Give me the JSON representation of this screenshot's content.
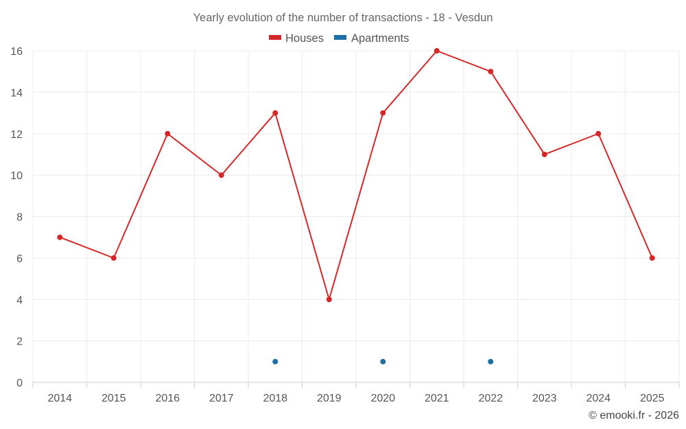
{
  "chart_data": {
    "type": "line",
    "title": "Yearly evolution of the number of transactions - 18 - Vesdun",
    "categories": [
      "2014",
      "2015",
      "2016",
      "2017",
      "2018",
      "2019",
      "2020",
      "2021",
      "2022",
      "2023",
      "2024",
      "2025"
    ],
    "series": [
      {
        "name": "Houses",
        "color": "#d62728",
        "values": [
          7,
          6,
          12,
          10,
          13,
          4,
          13,
          16,
          15,
          11,
          12,
          6
        ]
      },
      {
        "name": "Apartments",
        "color": "#1f6fa6",
        "values": [
          null,
          null,
          null,
          null,
          1,
          null,
          1,
          null,
          1,
          null,
          null,
          null
        ]
      }
    ],
    "ylim": [
      0,
      16
    ],
    "yticks": [
      0,
      2,
      4,
      6,
      8,
      10,
      12,
      14,
      16
    ],
    "xlabel": "",
    "ylabel": "",
    "grid": true,
    "legend": "top-center"
  },
  "credit": "© emooki.fr - 2026"
}
